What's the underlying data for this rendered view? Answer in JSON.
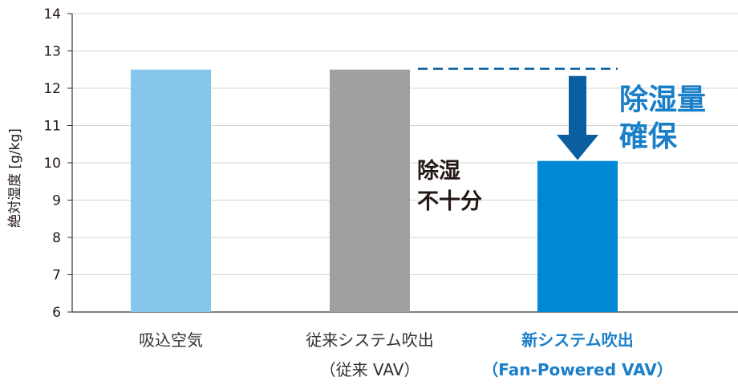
{
  "chart_data": {
    "type": "bar",
    "ylabel": "絶対湿度 [g/kg]",
    "ylim": [
      6,
      14
    ],
    "yticks": [
      6,
      7,
      8,
      9,
      10,
      11,
      12,
      13,
      14
    ],
    "grid": true,
    "categories": [
      {
        "line1": "吸込空気",
        "line2": "",
        "color": "#85c6ea",
        "label_color": "#333333",
        "bold": false
      },
      {
        "line1": "従来システム吹出",
        "line2": "（従来 VAV）",
        "color": "#a0a0a0",
        "label_color": "#333333",
        "bold": false
      },
      {
        "line1": "新システム吹出",
        "line2": "（Fan-Powered VAV）",
        "color": "#0088d4",
        "label_color": "#1a7fc8",
        "bold": true
      }
    ],
    "values": [
      12.5,
      12.5,
      10.05
    ],
    "annotations": {
      "insufficient": {
        "line1": "除湿",
        "line2": "不十分",
        "color": "#231815"
      },
      "secured": {
        "line1": "除湿量",
        "line2": "確保",
        "color": "#1a7fc8"
      },
      "reference_line_value": 12.5,
      "arrow_color": "#0a5fa0"
    }
  }
}
